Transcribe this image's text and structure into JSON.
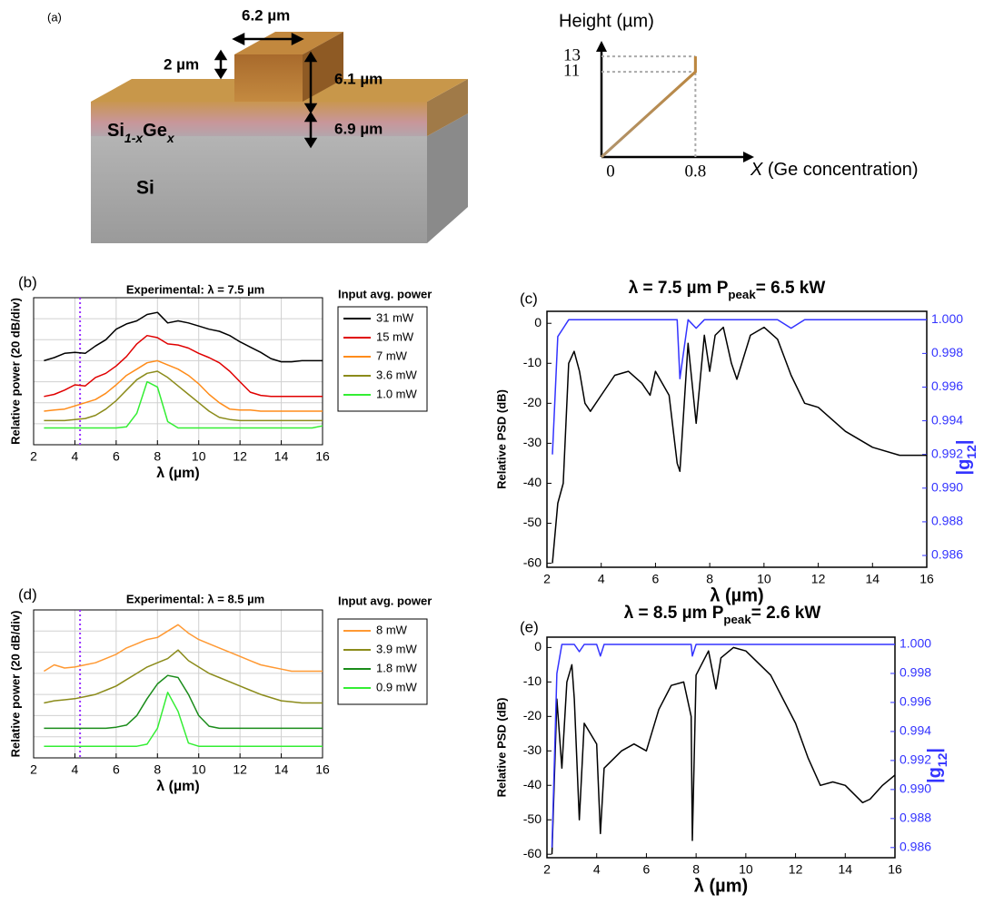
{
  "diagram": {
    "label": "(a)",
    "width_label": "6.2 µm",
    "step_label": "2 µm",
    "ridge_label": "6.1 µm",
    "slab_label": "6.9 µm",
    "slab_material": [
      "Si",
      "1-x",
      "Ge",
      "x"
    ],
    "substrate": "Si"
  },
  "chart_data": [
    {
      "type": "line",
      "ylabel": "Height (µm)",
      "xlabel": [
        "X",
        " (Ge concentration)"
      ],
      "x": [
        0,
        0.8,
        0.8
      ],
      "series": [
        {
          "color": "#b8843c",
          "values": [
            0,
            11,
            13
          ]
        }
      ],
      "xlim": [
        0,
        1.3
      ],
      "ylim": [
        0,
        15
      ],
      "xticks": [
        0,
        0.8
      ],
      "yticks": [
        11,
        13
      ]
    },
    {
      "type": "line",
      "label": "(b)",
      "title": "Experimental:  λ = 7.5 µm",
      "ylabel": "Relative power (20 dB/div)",
      "xlabel": "λ (µm)",
      "legend_title": "Input avg. power",
      "grid": true,
      "marker_line": {
        "x": 4.25,
        "color": "#9933ff"
      },
      "x": [
        2.5,
        3,
        3.5,
        4,
        4.5,
        5,
        5.5,
        6,
        6.5,
        7,
        7.5,
        8,
        8.5,
        9,
        9.5,
        10,
        10.5,
        11,
        11.5,
        12,
        12.5,
        13,
        13.5,
        14,
        14.5,
        15,
        15.5,
        16
      ],
      "xlim": [
        2,
        16
      ],
      "ylim": [
        0,
        140
      ],
      "xticks": [
        2,
        4,
        6,
        8,
        10,
        12,
        14,
        16
      ],
      "series": [
        {
          "name": "31 mW",
          "color": "#000000",
          "values": [
            80,
            83,
            87,
            88,
            87,
            94,
            100,
            110,
            115,
            118,
            124,
            126,
            116,
            118,
            116,
            113,
            110,
            108,
            104,
            98,
            93,
            88,
            82,
            79,
            79,
            80,
            80,
            80
          ]
        },
        {
          "name": "15 mW",
          "color": "#e00000",
          "values": [
            46,
            48,
            52,
            57,
            56,
            64,
            68,
            75,
            84,
            96,
            104,
            102,
            96,
            95,
            92,
            87,
            83,
            78,
            70,
            60,
            50,
            47,
            46,
            46,
            46,
            46,
            46,
            46
          ]
        },
        {
          "name": "7 mW",
          "color": "#ff8c1a",
          "values": [
            32,
            33,
            34,
            37,
            40,
            43,
            49,
            57,
            66,
            72,
            78,
            80,
            76,
            72,
            66,
            58,
            48,
            40,
            34,
            33,
            33,
            32,
            32,
            32,
            32,
            32,
            32,
            32
          ]
        },
        {
          "name": "3.6 mW",
          "color": "#8b8b1a",
          "values": [
            23,
            23,
            23,
            24,
            25,
            28,
            34,
            42,
            52,
            62,
            68,
            70,
            64,
            56,
            48,
            40,
            32,
            26,
            24,
            23,
            23,
            23,
            23,
            23,
            23,
            23,
            23,
            23
          ]
        },
        {
          "name": "1.0 mW",
          "color": "#33ee33",
          "values": [
            16,
            16,
            16,
            16,
            16,
            16,
            16,
            16,
            17,
            30,
            60,
            55,
            22,
            16,
            16,
            16,
            16,
            16,
            16,
            16,
            16,
            16,
            16,
            16,
            16,
            16,
            16,
            18
          ]
        }
      ]
    },
    {
      "type": "line",
      "label": "(c)",
      "title": [
        "λ = 7.5 µm    P",
        "peak",
        "= 6.5 kW"
      ],
      "ylabel": "Relative PSD (dB)",
      "y2label": [
        "|g",
        "12",
        "|"
      ],
      "xlabel": "λ (µm)",
      "x": [
        2.2,
        2.4,
        2.6,
        2.8,
        3,
        3.2,
        3.4,
        3.6,
        4,
        4.5,
        5,
        5.5,
        5.8,
        6,
        6.5,
        6.8,
        6.9,
        7.2,
        7.5,
        7.8,
        8,
        8.2,
        8.5,
        8.8,
        9,
        9.5,
        10,
        10.5,
        11,
        11.5,
        12,
        13,
        14,
        15,
        16
      ],
      "xlim": [
        2,
        16
      ],
      "ylim": [
        -61,
        3
      ],
      "y2lim": [
        0.9853,
        1.0005
      ],
      "xticks": [
        2,
        4,
        6,
        8,
        10,
        12,
        14,
        16
      ],
      "yticks": [
        -60,
        -50,
        -40,
        -30,
        -20,
        -10,
        0
      ],
      "y2ticks": [
        0.986,
        0.988,
        {
          "value": 0.99,
          "label": "0.990"
        },
        0.992,
        0.994,
        0.996,
        0.998,
        {
          "value": 1,
          "label": "1.000"
        }
      ],
      "series": [
        {
          "color": "#000000",
          "values": [
            -60,
            -45,
            -40,
            -10,
            -7,
            -12,
            -20,
            -22,
            -18,
            -13,
            -12,
            -15,
            -18,
            -12,
            -18,
            -35,
            -37,
            -5,
            -25,
            -3,
            -12,
            -3,
            -1,
            -10,
            -14,
            -3,
            -1,
            -4,
            -13,
            -20,
            -21,
            -27,
            -31,
            -33,
            -33
          ]
        },
        {
          "color": "#3333ff",
          "axis": "y2",
          "values": [
            0.992,
            0.999,
            0.9995,
            1,
            1,
            1,
            1,
            1,
            1,
            1,
            1,
            1,
            1,
            1,
            1,
            1,
            0.9965,
            1,
            0.9995,
            1,
            1,
            1,
            1,
            1,
            1,
            1,
            1,
            1,
            0.9995,
            1,
            1,
            1,
            1,
            1,
            1
          ]
        }
      ]
    },
    {
      "type": "line",
      "label": "(d)",
      "title": "Experimental:  λ = 8.5 µm",
      "ylabel": "Relative power (20 dB/div)",
      "xlabel": "λ (µm)",
      "legend_title": "Input avg. power",
      "grid": true,
      "marker_line": {
        "x": 4.25,
        "color": "#9933ff"
      },
      "x": [
        2.5,
        3,
        3.5,
        4,
        4.5,
        5,
        5.5,
        6,
        6.5,
        7,
        7.5,
        8,
        8.5,
        9,
        9.5,
        10,
        10.5,
        11,
        11.5,
        12,
        12.5,
        13,
        13.5,
        14,
        14.5,
        15,
        15.5,
        16
      ],
      "xlim": [
        2,
        16
      ],
      "ylim": [
        0,
        140
      ],
      "xticks": [
        2,
        4,
        6,
        8,
        10,
        12,
        14,
        16
      ],
      "series": [
        {
          "name": "8 mW",
          "color": "#ff9933",
          "values": [
            82,
            88,
            85,
            86,
            88,
            90,
            94,
            98,
            104,
            108,
            112,
            114,
            120,
            126,
            118,
            112,
            108,
            104,
            100,
            96,
            92,
            88,
            86,
            84,
            82,
            82,
            82,
            82
          ]
        },
        {
          "name": "3.9 mW",
          "color": "#8b8b1a",
          "values": [
            52,
            54,
            55,
            56,
            58,
            60,
            64,
            68,
            74,
            80,
            86,
            90,
            94,
            102,
            92,
            86,
            80,
            76,
            72,
            68,
            64,
            60,
            57,
            54,
            53,
            52,
            52,
            52
          ]
        },
        {
          "name": "1.8 mW",
          "color": "#1a8c1a",
          "values": [
            28,
            28,
            28,
            28,
            28,
            28,
            28,
            29,
            31,
            40,
            56,
            70,
            78,
            76,
            60,
            40,
            30,
            28,
            28,
            28,
            28,
            28,
            28,
            28,
            28,
            28,
            28,
            28
          ]
        },
        {
          "name": "0.9 mW",
          "color": "#33ee33",
          "values": [
            11,
            11,
            11,
            11,
            11,
            11,
            11,
            11,
            11,
            11,
            13,
            28,
            62,
            44,
            14,
            11,
            11,
            11,
            11,
            11,
            11,
            11,
            11,
            11,
            11,
            11,
            11,
            11
          ]
        }
      ]
    },
    {
      "type": "line",
      "label": "(e)",
      "title": [
        "λ = 8.5 µm    P",
        "peak",
        "= 2.6 kW"
      ],
      "ylabel": "Relative PSD (dB)",
      "y2label": [
        "|g",
        "12",
        "|"
      ],
      "xlabel": "λ (µm)",
      "x": [
        2.2,
        2.4,
        2.6,
        2.8,
        3,
        3.1,
        3.3,
        3.5,
        4,
        4.15,
        4.3,
        5,
        5.5,
        6,
        6.5,
        7,
        7.5,
        7.8,
        7.85,
        8,
        8.5,
        8.8,
        9,
        9.5,
        10,
        11,
        12,
        12.5,
        13,
        13.5,
        14,
        14.7,
        15,
        15.5,
        16
      ],
      "xlim": [
        2,
        16
      ],
      "ylim": [
        -61,
        3
      ],
      "y2lim": [
        0.9853,
        1.0005
      ],
      "xticks": [
        2,
        4,
        6,
        8,
        10,
        12,
        14,
        16
      ],
      "yticks": [
        -60,
        -50,
        -40,
        -30,
        -20,
        -10,
        0
      ],
      "y2ticks": [
        0.986,
        0.988,
        {
          "value": 0.99,
          "label": "0.990"
        },
        0.992,
        0.994,
        0.996,
        0.998,
        {
          "value": 1,
          "label": "1.000"
        }
      ],
      "series": [
        {
          "color": "#000000",
          "values": [
            -60,
            -15,
            -35,
            -10,
            -5,
            -15,
            -50,
            -22,
            -28,
            -54,
            -35,
            -30,
            -28,
            -30,
            -18,
            -11,
            -10,
            -20,
            -56,
            -8,
            -1,
            -12,
            -3,
            0,
            -1,
            -8,
            -22,
            -32,
            -40,
            -39,
            -40,
            -45,
            -44,
            -40,
            -37
          ]
        },
        {
          "color": "#3333ff",
          "axis": "y2",
          "values": [
            0.986,
            0.998,
            1,
            1,
            1,
            1,
            0.9995,
            1,
            1,
            0.9992,
            1,
            1,
            1,
            1,
            1,
            1,
            1,
            1,
            0.9992,
            1,
            1,
            1,
            1,
            1,
            1,
            1,
            1,
            1,
            1,
            1,
            1,
            1,
            1,
            1,
            1
          ]
        }
      ]
    }
  ]
}
